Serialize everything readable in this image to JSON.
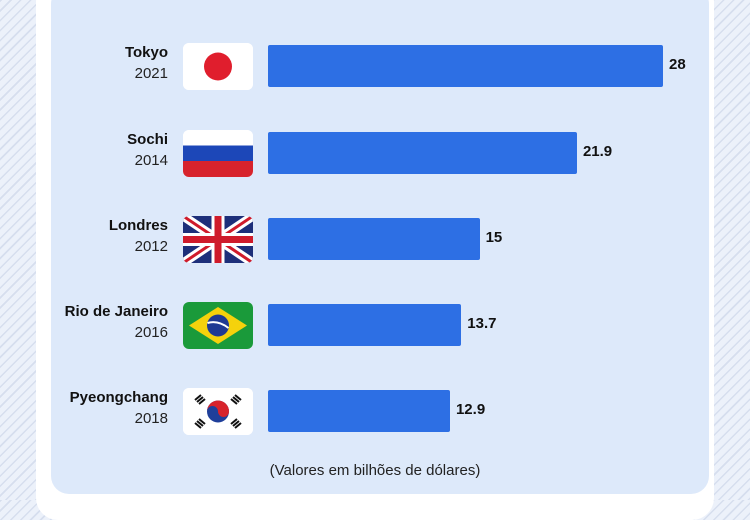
{
  "chart_data": {
    "type": "bar",
    "orientation": "horizontal",
    "categories": [
      "Tokyo 2021",
      "Sochi 2014",
      "Londres 2012",
      "Rio de Janeiro 2016",
      "Pyeongchang 2018"
    ],
    "values": [
      28,
      21.9,
      15,
      13.7,
      12.9
    ],
    "annotation": "(Valores em bilhões de dólares)",
    "bar_color": "#2d6fe4",
    "data_labels": true,
    "grid": false,
    "xlim": [
      0,
      28
    ]
  },
  "rows": [
    {
      "city": "Tokyo",
      "year": "2021",
      "value_label": "28",
      "flag": "japan-flag-icon"
    },
    {
      "city": "Sochi",
      "year": "2014",
      "value_label": "21.9",
      "flag": "russia-flag-icon"
    },
    {
      "city": "Londres",
      "year": "2012",
      "value_label": "15",
      "flag": "uk-flag-icon"
    },
    {
      "city": "Rio de Janeiro",
      "year": "2016",
      "value_label": "13.7",
      "flag": "brazil-flag-icon"
    },
    {
      "city": "Pyeongchang",
      "year": "2018",
      "value_label": "12.9",
      "flag": "south-korea-flag-icon"
    }
  ],
  "colors": {
    "bar": "#2d6fe4",
    "card_background": "#dde9fa"
  }
}
